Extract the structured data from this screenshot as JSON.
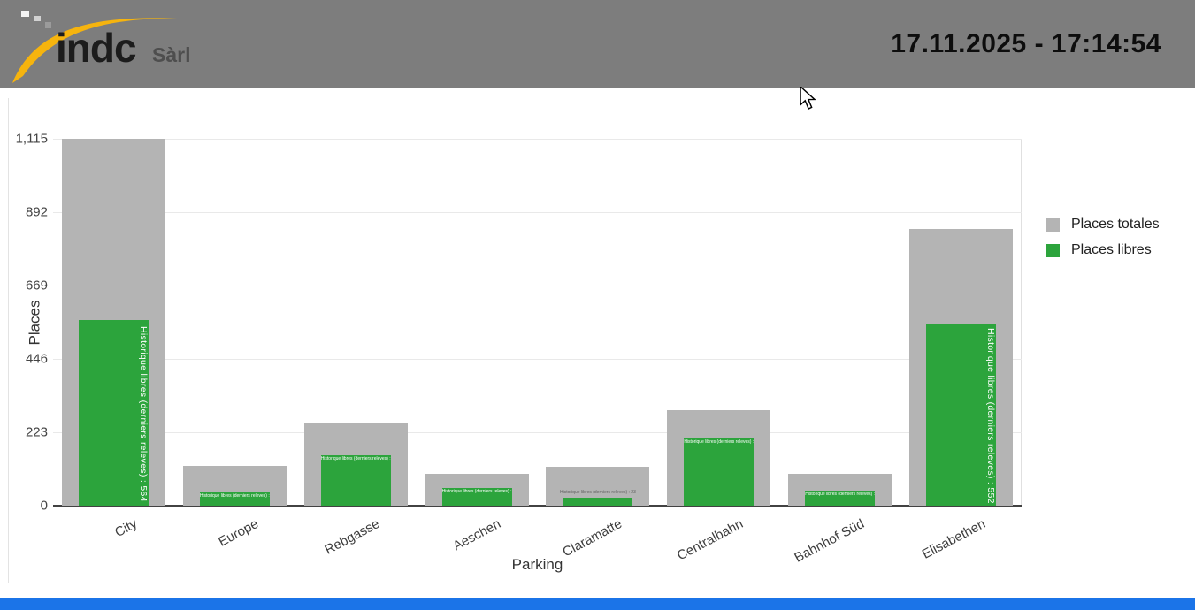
{
  "header": {
    "logo_text": "indc",
    "logo_suffix": "Sàrl",
    "datetime": "17.11.2025 - 17:14:54"
  },
  "colors": {
    "header_bg": "#7d7d7d",
    "totales": "#b4b4b4",
    "libres": "#2ca43c",
    "footer_bar": "#1b74e8",
    "logo_swoosh": "#f6b40e",
    "axis_line": "#424242",
    "gridline": "#e9e9e9"
  },
  "chart_data": {
    "type": "bar",
    "title": "",
    "xlabel": "Parking",
    "ylabel": "Places",
    "ylim": [
      0,
      1115
    ],
    "grid": true,
    "legend_position": "right",
    "yticks": [
      {
        "value": 0,
        "label": "0"
      },
      {
        "value": 223,
        "label": "223"
      },
      {
        "value": 446,
        "label": "446"
      },
      {
        "value": 669,
        "label": "669"
      },
      {
        "value": 892,
        "label": "892"
      },
      {
        "value": 1115,
        "label": "1,115"
      }
    ],
    "categories": [
      "City",
      "Europe",
      "Rebgasse",
      "Aeschen",
      "Claramatte",
      "Centralbahn",
      "Bahnhof Süd",
      "Elisabethen"
    ],
    "series": [
      {
        "name": "Places totales",
        "color": "#b4b4b4",
        "values": [
          1115,
          120,
          249,
          96,
          119,
          289,
          98,
          840
        ]
      },
      {
        "name": "Places libres",
        "color": "#2ca43c",
        "values": [
          564,
          39,
          152,
          55,
          23,
          203,
          45,
          552
        ]
      }
    ],
    "bar_label_prefix": "Historique libres (derniers releves)",
    "bar_labels": [
      "Historique libres (derniers releves) : 564",
      "Historique libres (derniers releves) : 39",
      "Historique libres (derniers releves) : 152",
      "Historique libres (derniers releves) : 55",
      "Historique libres (derniers releves) : 23",
      "Historique libres (derniers releves) : 203",
      "Historique libres (derniers releves) : 45",
      "Historique libres (derniers releves) : 552"
    ]
  }
}
